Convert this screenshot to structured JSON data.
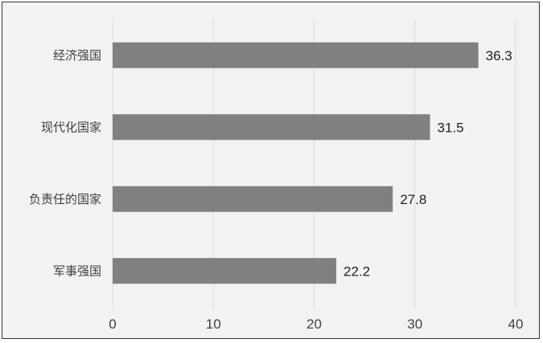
{
  "chart_data": {
    "type": "bar",
    "orientation": "horizontal",
    "categories": [
      "经济强国",
      "现代化国家",
      "负责任的国家",
      "军事强国"
    ],
    "values": [
      36.3,
      31.5,
      27.8,
      22.2
    ],
    "value_labels": [
      "36.3",
      "31.5",
      "27.8",
      "22.2"
    ],
    "x_ticks": [
      "0",
      "10",
      "20",
      "30",
      "40"
    ],
    "xlim": [
      0,
      40
    ],
    "grid": true,
    "legend": "none",
    "colors": {
      "bar": "#808080",
      "background": "#f2f2f2",
      "grid": "#d9d9d9"
    }
  }
}
